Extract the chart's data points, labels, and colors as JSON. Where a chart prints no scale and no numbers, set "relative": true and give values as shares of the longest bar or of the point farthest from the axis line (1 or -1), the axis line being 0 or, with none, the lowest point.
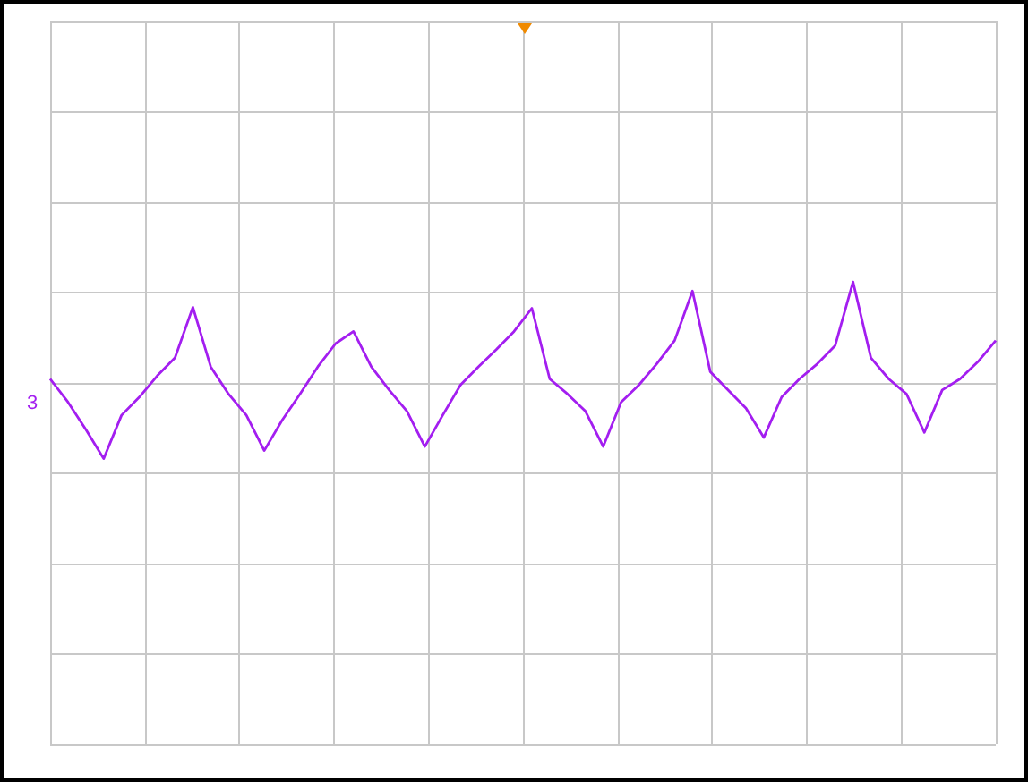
{
  "chart_data": {
    "type": "line",
    "relative": true,
    "grid": true,
    "marker": "none",
    "line_style": "solid",
    "annotations": [
      "3"
    ],
    "categories": [
      null,
      null,
      null,
      null,
      null,
      null,
      null,
      null,
      null,
      null,
      null,
      null,
      null,
      null,
      null,
      null,
      null,
      null,
      null,
      null,
      null,
      null,
      null,
      null,
      null,
      null,
      null,
      null,
      null,
      null,
      null,
      null,
      null,
      null,
      null,
      null,
      null,
      null,
      null,
      null,
      null,
      null,
      null,
      null,
      null,
      null,
      null,
      null,
      null,
      null,
      null,
      null,
      null,
      null
    ],
    "series": [
      {
        "color": "#a31ef0",
        "values": [
          0.04,
          -0.19,
          -0.46,
          -0.75,
          -0.32,
          -0.14,
          0.07,
          0.25,
          0.75,
          0.16,
          -0.11,
          -0.32,
          -0.67,
          -0.37,
          -0.11,
          0.16,
          0.39,
          0.51,
          0.16,
          -0.07,
          -0.28,
          -0.63,
          -0.32,
          -0.02,
          0.16,
          0.33,
          0.51,
          0.74,
          0.04,
          -0.11,
          -0.28,
          -0.63,
          -0.19,
          -0.02,
          0.19,
          0.42,
          0.91,
          0.11,
          -0.07,
          -0.25,
          -0.54,
          -0.14,
          0.04,
          0.19,
          0.37,
          1,
          0.25,
          0.04,
          -0.11,
          -0.49,
          -0.07,
          0.04,
          0.21,
          0.42
        ]
      }
    ]
  }
}
